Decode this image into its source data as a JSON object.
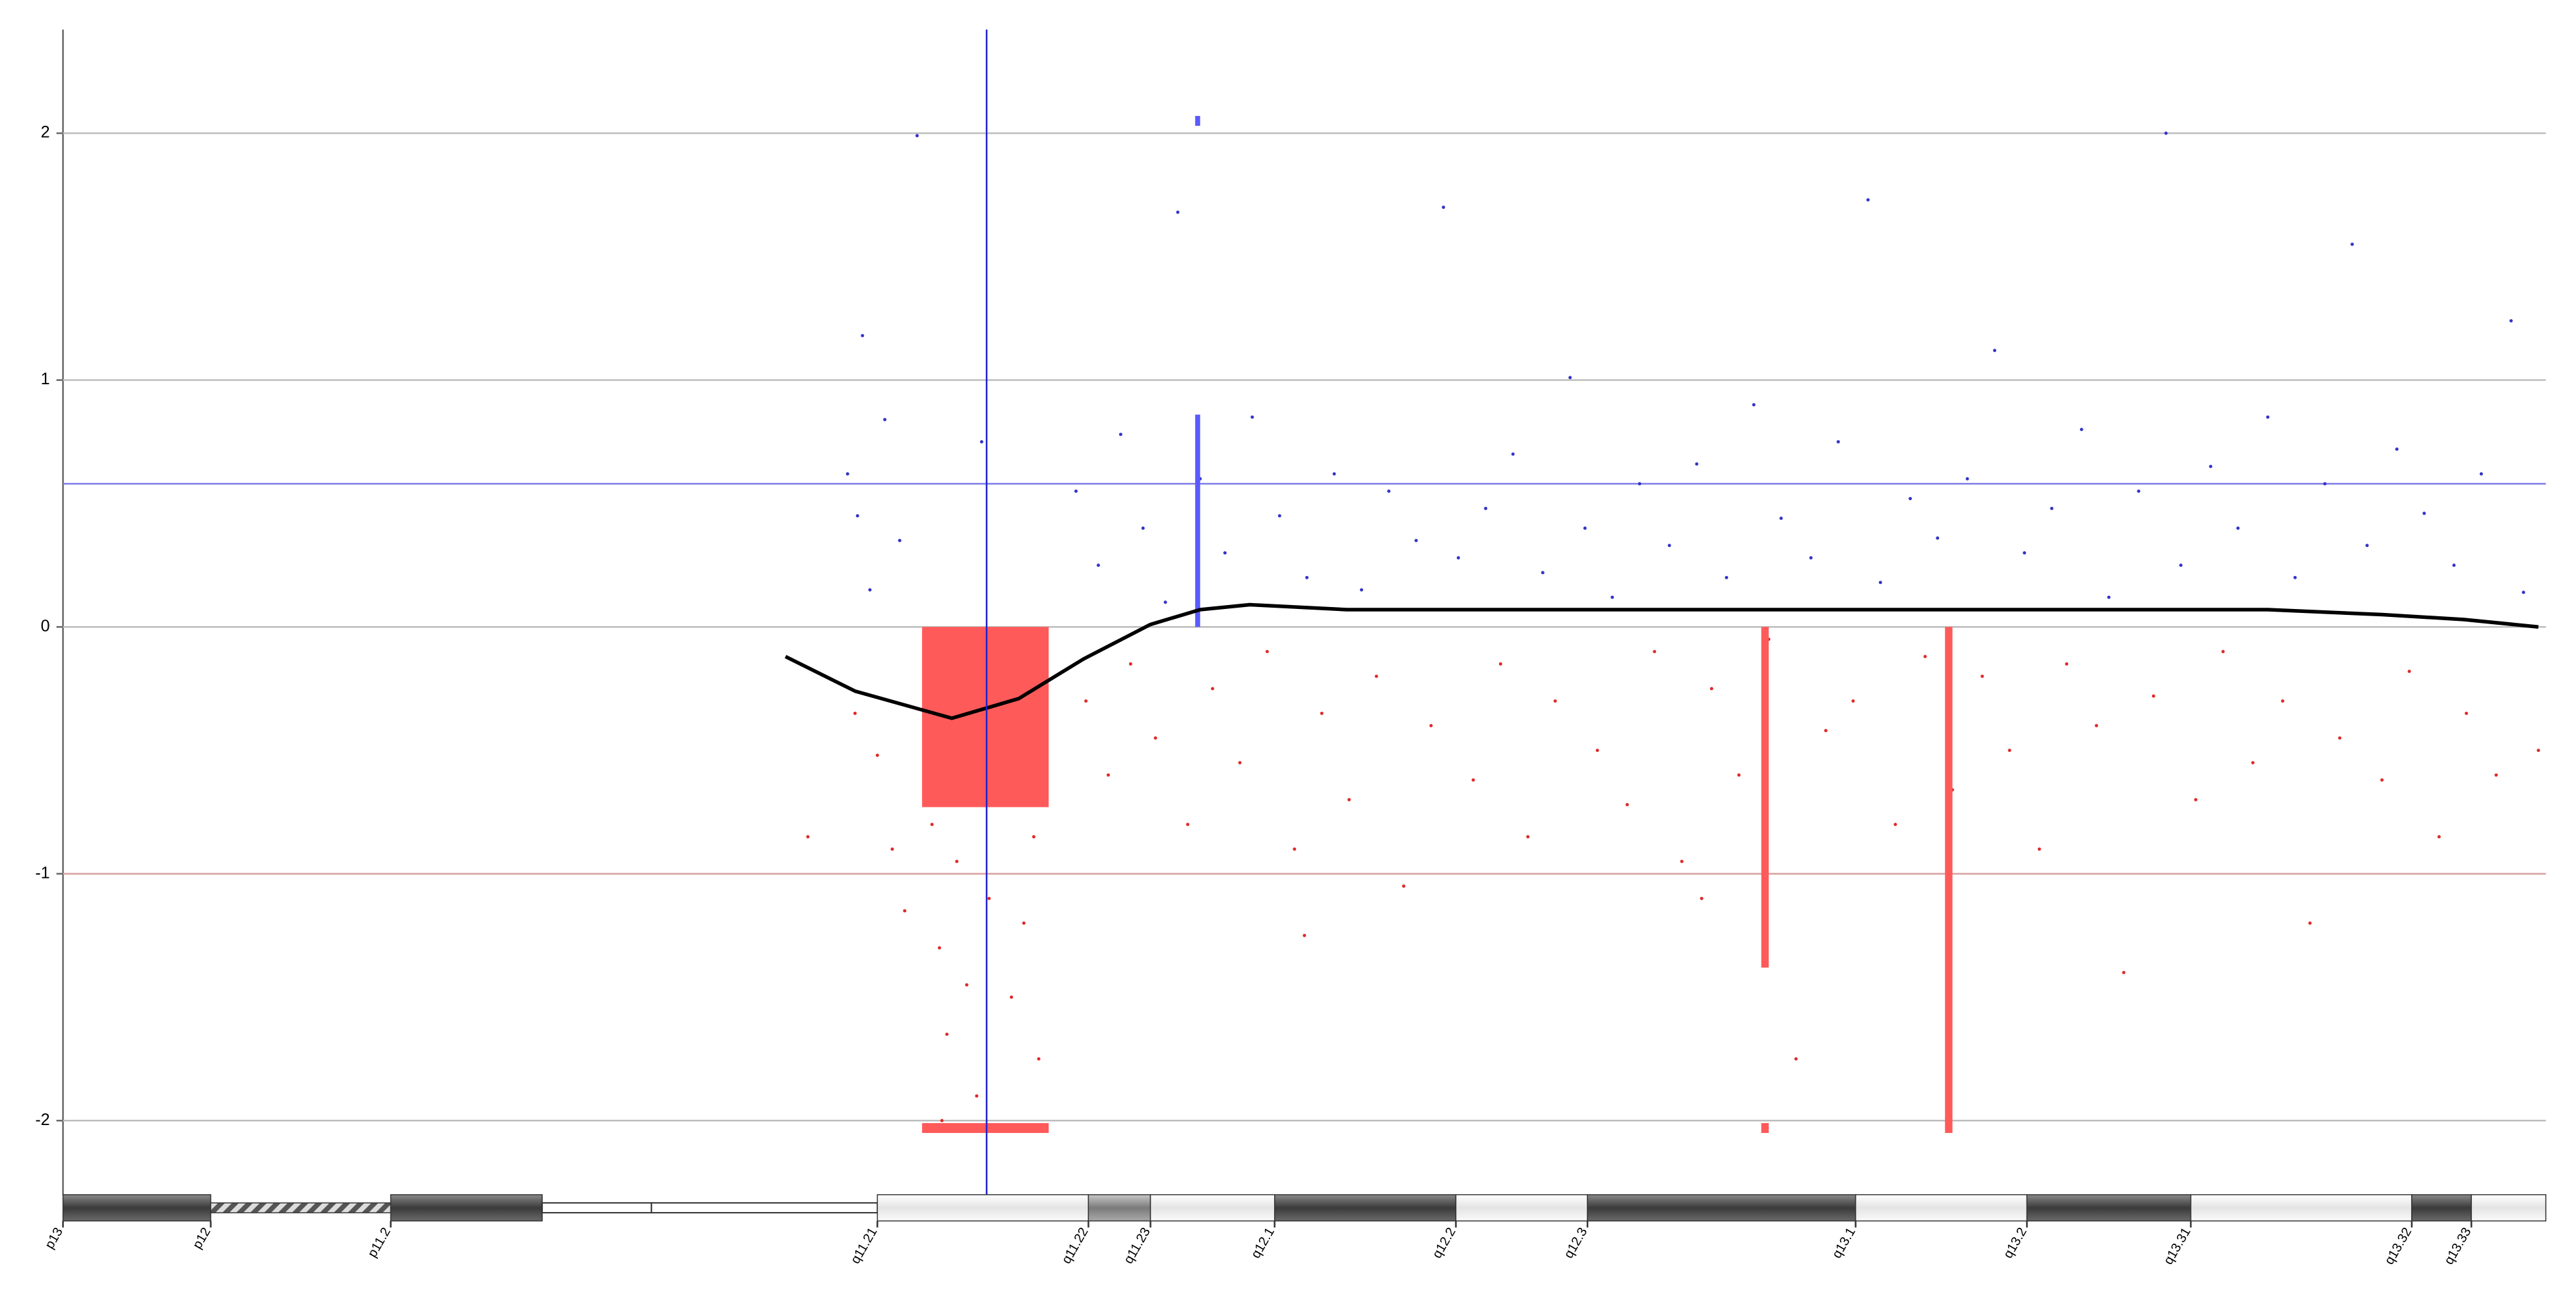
{
  "chart_data": {
    "type": "scatter",
    "xlim": [
      0,
      100
    ],
    "ylim": [
      -2.3,
      2.42
    ],
    "yticks": [
      2,
      1,
      0,
      -1,
      -2
    ],
    "grid": true,
    "positive_color": "#3434c8",
    "negative_color": "#e02a2a",
    "x": [
      31.6,
      31.9,
      32.2,
      32.5,
      32.8,
      33.1,
      33.4,
      33.7,
      33.9,
      32.0,
      35.0,
      35.3,
      35.6,
      36.0,
      36.4,
      36.8,
      37.3,
      37.8,
      38.2,
      38.7,
      39.1,
      39.3,
      35.4,
      37.0,
      34.4,
      40.8,
      41.2,
      41.7,
      42.1,
      42.6,
      43.0,
      43.5,
      44.0,
      44.4,
      44.9,
      45.3,
      45.8,
      46.3,
      46.8,
      47.4,
      47.9,
      48.5,
      49.0,
      49.6,
      50.1,
      50.7,
      51.2,
      51.8,
      52.3,
      52.9,
      53.4,
      54.0,
      54.5,
      55.1,
      55.6,
      56.2,
      56.8,
      57.3,
      57.9,
      58.4,
      59.0,
      59.6,
      60.1,
      60.7,
      61.3,
      61.8,
      62.4,
      63.0,
      63.5,
      64.1,
      64.7,
      65.2,
      65.8,
      66.4,
      67.0,
      67.5,
      68.1,
      68.7,
      69.2,
      69.8,
      70.4,
      71.0,
      71.5,
      72.1,
      72.7,
      73.2,
      73.8,
      74.4,
      75.0,
      75.5,
      76.1,
      76.7,
      77.3,
      77.8,
      78.4,
      79.0,
      79.6,
      80.1,
      80.7,
      81.3,
      81.9,
      82.4,
      83.0,
      83.6,
      84.2,
      84.7,
      85.3,
      85.9,
      86.5,
      87.0,
      87.6,
      88.2,
      88.8,
      89.4,
      89.9,
      90.5,
      91.1,
      91.7,
      92.2,
      92.8,
      93.4,
      94.0,
      94.5,
      95.1,
      95.7,
      96.3,
      96.8,
      97.4,
      98.0,
      98.6,
      99.1,
      99.7,
      30.0,
      50.0,
      66.0
    ],
    "values": [
      0.62,
      -0.35,
      1.18,
      0.15,
      -0.52,
      0.84,
      -0.9,
      0.35,
      -1.15,
      0.45,
      -0.8,
      -1.3,
      -1.65,
      -0.95,
      -1.45,
      -1.9,
      -1.1,
      -0.6,
      -1.5,
      -1.2,
      -0.85,
      -1.75,
      -2.0,
      0.75,
      1.99,
      0.55,
      -0.3,
      0.25,
      -0.6,
      0.78,
      -0.15,
      0.4,
      -0.45,
      0.1,
      1.68,
      -0.8,
      0.6,
      -0.25,
      0.3,
      -0.55,
      0.85,
      -0.1,
      0.45,
      -0.9,
      0.2,
      -0.35,
      0.62,
      -0.7,
      0.15,
      -0.2,
      0.55,
      -1.05,
      0.35,
      -0.4,
      1.7,
      0.28,
      -0.62,
      0.48,
      -0.15,
      0.7,
      -0.85,
      0.22,
      -0.3,
      1.01,
      0.4,
      -0.5,
      0.12,
      -0.72,
      0.58,
      -0.1,
      0.33,
      -0.95,
      0.66,
      -0.25,
      0.2,
      -0.6,
      0.9,
      -0.05,
      0.44,
      -1.75,
      0.28,
      -0.42,
      0.75,
      -0.3,
      1.73,
      0.18,
      -0.8,
      0.52,
      -0.12,
      0.36,
      -0.66,
      0.6,
      -0.2,
      1.12,
      -0.5,
      0.3,
      -0.9,
      0.48,
      -0.15,
      0.8,
      -0.4,
      0.12,
      -1.4,
      0.55,
      -0.28,
      2.0,
      0.25,
      -0.7,
      0.65,
      -0.1,
      0.4,
      -0.55,
      0.85,
      -0.3,
      0.2,
      -1.2,
      0.58,
      -0.45,
      1.55,
      0.33,
      -0.62,
      0.72,
      -0.18,
      0.46,
      -0.85,
      0.25,
      -0.35,
      0.62,
      -0.6,
      1.24,
      0.14,
      -0.5,
      -0.85,
      -1.25,
      -1.1
    ],
    "segments": [
      {
        "start": 34.6,
        "end": 39.7,
        "y0": 0,
        "y1": -0.73,
        "color": "#ff5a5a"
      },
      {
        "start": 34.6,
        "end": 39.7,
        "y0": -2.01,
        "y1": -2.05,
        "color": "#ff5a5a"
      },
      {
        "start": 68.4,
        "end": 68.7,
        "y0": 0,
        "y1": -1.38,
        "color": "#ff5a5a"
      },
      {
        "start": 68.4,
        "end": 68.7,
        "y0": -2.01,
        "y1": -2.05,
        "color": "#ff5a5a"
      },
      {
        "start": 75.8,
        "end": 76.1,
        "y0": 0,
        "y1": -2.05,
        "color": "#ff5a5a"
      },
      {
        "start": 45.6,
        "end": 45.8,
        "y0": 0,
        "y1": 0.86,
        "color": "#5a5aff"
      },
      {
        "start": 45.6,
        "end": 45.8,
        "y0": 2.03,
        "y1": 2.07,
        "color": "#5a5aff"
      }
    ],
    "smooth": {
      "color": "#000000",
      "x": [
        29.1,
        31.9,
        35.8,
        38.5,
        41.1,
        43.8,
        45.8,
        47.8,
        51.7,
        63.6,
        76.9,
        88.8,
        93.4,
        96.7,
        99.7
      ],
      "values": [
        -0.12,
        -0.26,
        -0.37,
        -0.29,
        -0.13,
        0.01,
        0.07,
        0.09,
        0.07,
        0.07,
        0.07,
        0.07,
        0.05,
        0.03,
        0.0
      ]
    },
    "thresholds": [
      {
        "value": 0.58,
        "color": "#7c7ce8"
      },
      {
        "value": -1,
        "color": "#d9a0a0"
      }
    ],
    "cursor": {
      "x": 37.2,
      "color": "#2020d0"
    },
    "ideogram": {
      "bands": [
        {
          "label": "p13",
          "start": 0,
          "end": 5.95,
          "stain": "dark"
        },
        {
          "label": "p12",
          "start": 5.95,
          "end": 13.2,
          "stain": "stalk"
        },
        {
          "label": "p11.2",
          "start": 13.2,
          "end": 19.3,
          "stain": "dark"
        },
        {
          "label": null,
          "start": 19.3,
          "end": 23.7,
          "stain": "gap"
        },
        {
          "label": null,
          "start": 23.7,
          "end": 32.8,
          "stain": "gap"
        },
        {
          "label": "q11.21",
          "start": 32.8,
          "end": 41.3,
          "stain": "light"
        },
        {
          "label": "q11.22",
          "start": 41.3,
          "end": 43.8,
          "stain": "gray"
        },
        {
          "label": "q11.23",
          "start": 43.8,
          "end": 48.8,
          "stain": "light"
        },
        {
          "label": "q12.1",
          "start": 48.8,
          "end": 56.1,
          "stain": "dark"
        },
        {
          "label": "q12.2",
          "start": 56.1,
          "end": 61.4,
          "stain": "light"
        },
        {
          "label": "q12.3",
          "start": 61.4,
          "end": 72.2,
          "stain": "dark"
        },
        {
          "label": "q13.1",
          "start": 72.2,
          "end": 79.1,
          "stain": "light"
        },
        {
          "label": "q13.2",
          "start": 79.1,
          "end": 85.7,
          "stain": "dark"
        },
        {
          "label": "q13.31",
          "start": 85.7,
          "end": 94.6,
          "stain": "light"
        },
        {
          "label": "q13.32",
          "start": 94.6,
          "end": 97.0,
          "stain": "dark"
        },
        {
          "label": "q13.33",
          "start": 97.0,
          "end": 100,
          "stain": "light"
        }
      ]
    }
  }
}
